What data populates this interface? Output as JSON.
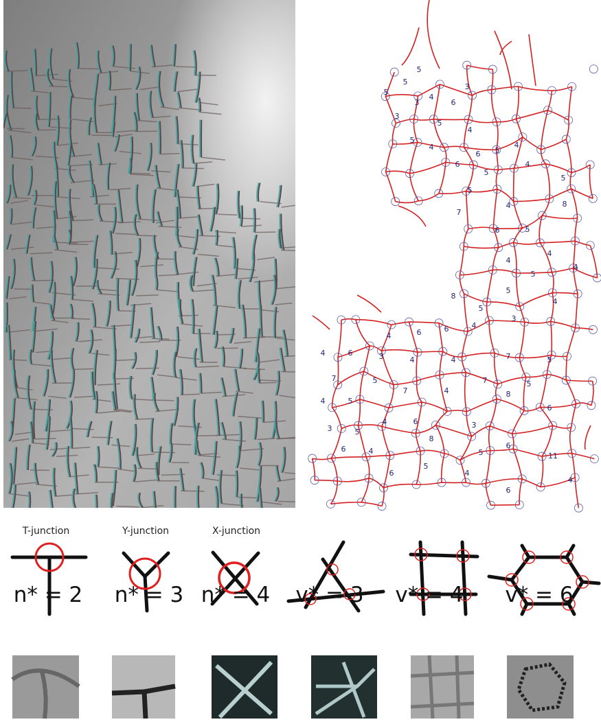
{
  "junction_labels": [
    "T-junction",
    "Y-junction",
    "X-junction"
  ],
  "formulas": [
    "n* = 2",
    "n* = 3",
    "n* = 4",
    "v* = 3",
    "v* = 4",
    "v* = 6"
  ],
  "map": {
    "cell_labels": [
      "5",
      "5",
      "5",
      "3",
      "3",
      "4",
      "6",
      "3",
      "5",
      "4",
      "5",
      "4",
      "6",
      "5",
      "6",
      "4",
      "5",
      "4",
      "5",
      "5",
      "4",
      "8",
      "7",
      "6",
      "5",
      "4",
      "4",
      "5",
      "4",
      "8",
      "5",
      "5",
      "3",
      "4",
      "4",
      "6",
      "6",
      "4",
      "4",
      "6",
      "3",
      "4",
      "4",
      "7",
      "5",
      "7",
      "5",
      "7",
      "4",
      "7",
      "5",
      "4",
      "5",
      "4",
      "6",
      "3",
      "8",
      "6",
      "3",
      "5",
      "8",
      "5",
      "6",
      "11",
      "6",
      "4",
      "5",
      "6",
      "4",
      "6",
      "4"
    ]
  }
}
